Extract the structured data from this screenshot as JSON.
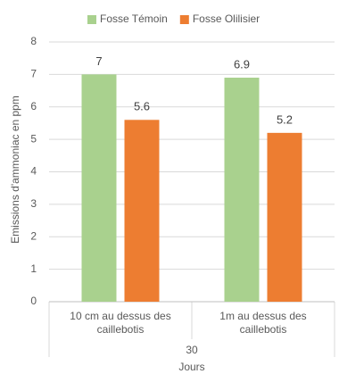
{
  "chart_data": {
    "type": "bar",
    "categories": [
      "10 cm au dessus des caillebotis",
      "1m au dessus des caillebotis"
    ],
    "group_label": "30",
    "x_label": "Jours",
    "y_label": "Emissions d'ammoniac en ppm",
    "series": [
      {
        "name": "Fosse Témoin",
        "color": "#a9d18e",
        "values": [
          7,
          6.9
        ]
      },
      {
        "name": "Fosse Olilisier",
        "color": "#ed7d31",
        "values": [
          5.6,
          5.2
        ]
      }
    ],
    "ylim": [
      0,
      8
    ],
    "yticks": [
      0,
      1,
      2,
      3,
      4,
      5,
      6,
      7,
      8
    ],
    "grid": true,
    "legend": "top"
  }
}
